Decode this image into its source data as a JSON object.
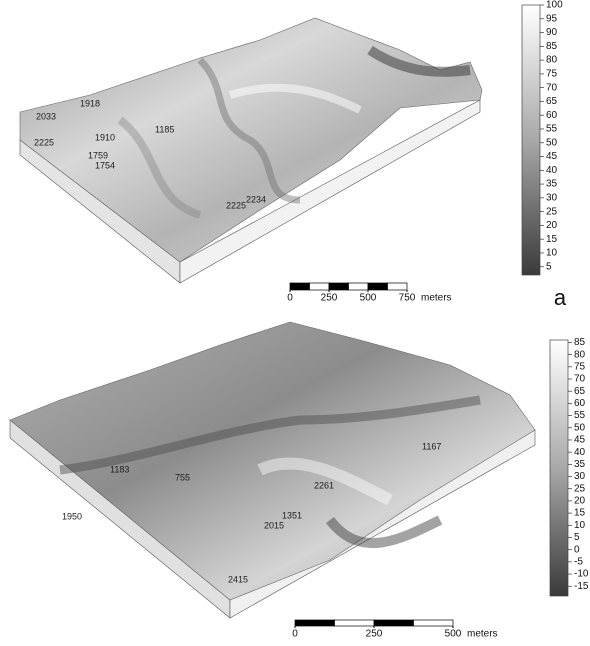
{
  "panels": [
    {
      "label": "a",
      "colorbar": {
        "ylim": [
          2,
          100
        ],
        "yticks": [
          100,
          95,
          90,
          85,
          80,
          75,
          70,
          65,
          60,
          55,
          50,
          45,
          40,
          35,
          30,
          25,
          20,
          15,
          10,
          5
        ]
      },
      "scalebar": {
        "xlim": [
          0,
          750
        ],
        "xticks": [
          0,
          250,
          500,
          750
        ],
        "unit": "meters"
      },
      "point_labels": [
        "2033",
        "1918",
        "2225",
        "1910",
        "1759",
        "1754",
        "1185",
        "2225",
        "2234"
      ]
    },
    {
      "colorbar": {
        "ylim": [
          -19,
          86
        ],
        "yticks": [
          85,
          80,
          75,
          70,
          65,
          60,
          55,
          50,
          45,
          40,
          35,
          30,
          25,
          20,
          15,
          10,
          5,
          0,
          -5,
          -10,
          -15
        ]
      },
      "scalebar": {
        "xlim": [
          0,
          500
        ],
        "xticks": [
          0,
          250,
          500
        ],
        "unit": "meters"
      },
      "point_labels": [
        "1950",
        "755",
        "1183",
        "1167",
        "2261",
        "1351",
        "2015",
        "2415"
      ]
    }
  ]
}
